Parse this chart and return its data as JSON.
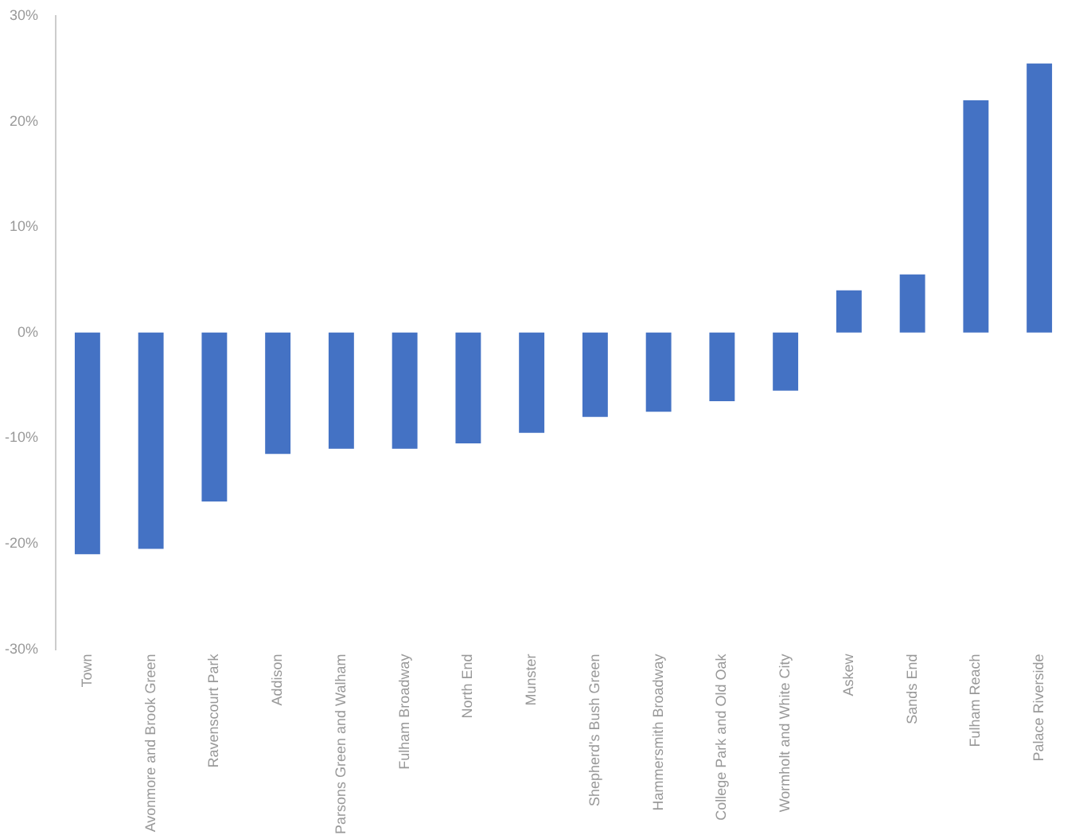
{
  "chart_data": {
    "type": "bar",
    "categories": [
      "Town",
      "Avonmore and Brook Green",
      "Ravenscourt Park",
      "Addison",
      "Parsons Green and Walham",
      "Fulham Broadway",
      "North End",
      "Munster",
      "Shepherd's Bush Green",
      "Hammersmith Broadway",
      "College Park and Old Oak",
      "Wormholt and White City",
      "Askew",
      "Sands End",
      "Fulham Reach",
      "Palace Riverside"
    ],
    "values": [
      -21,
      -20.5,
      -16,
      -11.5,
      -11,
      -11,
      -10.5,
      -9.5,
      -8,
      -7.5,
      -6.5,
      -5.5,
      4,
      5.5,
      22,
      25.5
    ],
    "color": "#4472c4",
    "ylim": [
      -30,
      30
    ],
    "yticks": [
      {
        "value": -30,
        "label": "-30%"
      },
      {
        "value": -20,
        "label": "-20%"
      },
      {
        "value": -10,
        "label": "-10%"
      },
      {
        "value": 0,
        "label": "0%"
      },
      {
        "value": 10,
        "label": "10%"
      },
      {
        "value": 20,
        "label": "20%"
      },
      {
        "value": 30,
        "label": "30%"
      }
    ],
    "grid": false,
    "legend": false
  }
}
